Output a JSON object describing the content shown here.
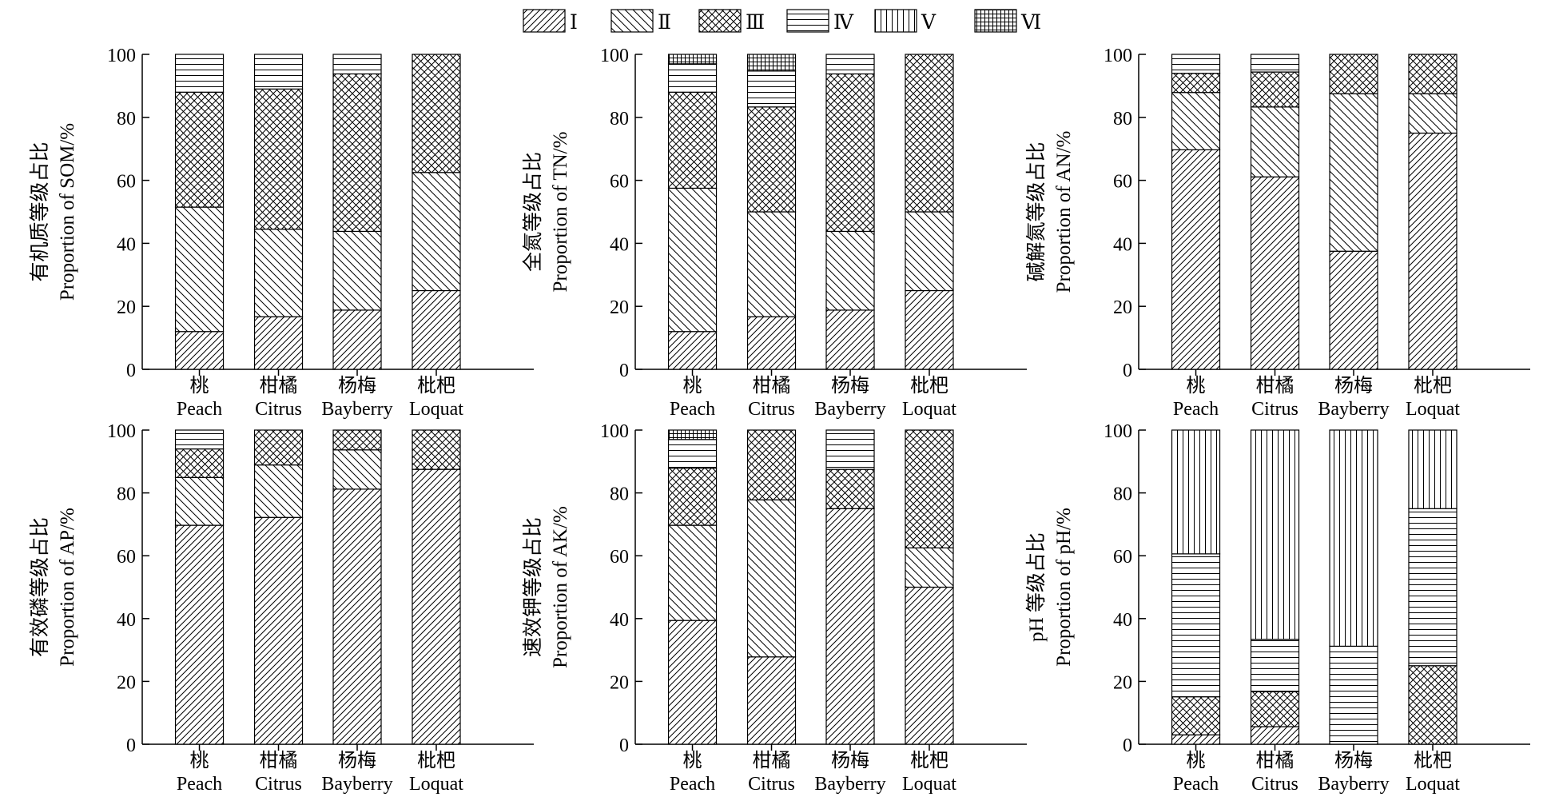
{
  "legend": {
    "items": [
      "Ⅰ",
      "Ⅱ",
      "Ⅲ",
      "Ⅳ",
      "Ⅴ",
      "Ⅵ"
    ],
    "patterns": [
      "diag-right-dense",
      "diag-left",
      "crosshatch",
      "horizontal",
      "vertical",
      "grid"
    ]
  },
  "colors": {
    "stroke": "#000000",
    "background": "#ffffff"
  },
  "chart_data": [
    {
      "type": "bar",
      "stacked": true,
      "ylabel_cn": "有机质等级占比",
      "ylabel_en": "Proportion of SOM/%",
      "ylim": [
        0,
        100
      ],
      "yticks": [
        0,
        20,
        40,
        60,
        80,
        100
      ],
      "categories": [
        {
          "cn": "桃",
          "en": "Peach"
        },
        {
          "cn": "柑橘",
          "en": "Citrus"
        },
        {
          "cn": "杨梅",
          "en": "Bayberry"
        },
        {
          "cn": "枇杷",
          "en": "Loquat"
        }
      ],
      "series": [
        {
          "name": "Ⅰ",
          "values": [
            12,
            16.7,
            18.8,
            25
          ]
        },
        {
          "name": "Ⅱ",
          "values": [
            39.5,
            27.8,
            25,
            37.5
          ]
        },
        {
          "name": "Ⅲ",
          "values": [
            36.5,
            44.5,
            50,
            37.5
          ]
        },
        {
          "name": "Ⅳ",
          "values": [
            12,
            11,
            6.2,
            0
          ]
        },
        {
          "name": "Ⅴ",
          "values": [
            0,
            0,
            0,
            0
          ]
        },
        {
          "name": "Ⅵ",
          "values": [
            0,
            0,
            0,
            0
          ]
        }
      ]
    },
    {
      "type": "bar",
      "stacked": true,
      "ylabel_cn": "全氮等级占比",
      "ylabel_en": "Proportion of TN/%",
      "ylim": [
        0,
        100
      ],
      "yticks": [
        0,
        20,
        40,
        60,
        80,
        100
      ],
      "categories": [
        {
          "cn": "桃",
          "en": "Peach"
        },
        {
          "cn": "柑橘",
          "en": "Citrus"
        },
        {
          "cn": "杨梅",
          "en": "Bayberry"
        },
        {
          "cn": "枇杷",
          "en": "Loquat"
        }
      ],
      "series": [
        {
          "name": "Ⅰ",
          "values": [
            12,
            16.7,
            18.8,
            25
          ]
        },
        {
          "name": "Ⅱ",
          "values": [
            45.5,
            33.3,
            25,
            25
          ]
        },
        {
          "name": "Ⅲ",
          "values": [
            30.5,
            33.3,
            50,
            50
          ]
        },
        {
          "name": "Ⅳ",
          "values": [
            9,
            11.4,
            6.2,
            0
          ]
        },
        {
          "name": "Ⅴ",
          "values": [
            0,
            0,
            0,
            0
          ]
        },
        {
          "name": "Ⅵ",
          "values": [
            3,
            5.3,
            0,
            0
          ]
        }
      ]
    },
    {
      "type": "bar",
      "stacked": true,
      "ylabel_cn": "碱解氮等级占比",
      "ylabel_en": "Proportion of AN/%",
      "ylim": [
        0,
        100
      ],
      "yticks": [
        0,
        20,
        40,
        60,
        80,
        100
      ],
      "categories": [
        {
          "cn": "桃",
          "en": "Peach"
        },
        {
          "cn": "柑橘",
          "en": "Citrus"
        },
        {
          "cn": "杨梅",
          "en": "Bayberry"
        },
        {
          "cn": "枇杷",
          "en": "Loquat"
        }
      ],
      "series": [
        {
          "name": "Ⅰ",
          "values": [
            69.7,
            61.1,
            37.5,
            75
          ]
        },
        {
          "name": "Ⅱ",
          "values": [
            18.2,
            22.2,
            50,
            12.5
          ]
        },
        {
          "name": "Ⅲ",
          "values": [
            6.1,
            11.1,
            12.5,
            12.5
          ]
        },
        {
          "name": "Ⅳ",
          "values": [
            6,
            5.6,
            0,
            0
          ]
        },
        {
          "name": "Ⅴ",
          "values": [
            0,
            0,
            0,
            0
          ]
        },
        {
          "name": "Ⅵ",
          "values": [
            0,
            0,
            0,
            0
          ]
        }
      ]
    },
    {
      "type": "bar",
      "stacked": true,
      "ylabel_cn": "有效磷等级占比",
      "ylabel_en": "Proportion of AP/%",
      "ylim": [
        0,
        100
      ],
      "yticks": [
        0,
        20,
        40,
        60,
        80,
        100
      ],
      "categories": [
        {
          "cn": "桃",
          "en": "Peach"
        },
        {
          "cn": "柑橘",
          "en": "Citrus"
        },
        {
          "cn": "杨梅",
          "en": "Bayberry"
        },
        {
          "cn": "枇杷",
          "en": "Loquat"
        }
      ],
      "series": [
        {
          "name": "Ⅰ",
          "values": [
            69.7,
            72.2,
            81.2,
            87.5
          ]
        },
        {
          "name": "Ⅱ",
          "values": [
            15.2,
            16.7,
            12.5,
            0
          ]
        },
        {
          "name": "Ⅲ",
          "values": [
            9.1,
            11.1,
            6.3,
            12.5
          ]
        },
        {
          "name": "Ⅳ",
          "values": [
            6,
            0,
            0,
            0
          ]
        },
        {
          "name": "Ⅴ",
          "values": [
            0,
            0,
            0,
            0
          ]
        },
        {
          "name": "Ⅵ",
          "values": [
            0,
            0,
            0,
            0
          ]
        }
      ]
    },
    {
      "type": "bar",
      "stacked": true,
      "ylabel_cn": "速效钾等级占比",
      "ylabel_en": "Proportion of AK/%",
      "ylim": [
        0,
        100
      ],
      "yticks": [
        0,
        20,
        40,
        60,
        80,
        100
      ],
      "categories": [
        {
          "cn": "桃",
          "en": "Peach"
        },
        {
          "cn": "柑橘",
          "en": "Citrus"
        },
        {
          "cn": "杨梅",
          "en": "Bayberry"
        },
        {
          "cn": "枇杷",
          "en": "Loquat"
        }
      ],
      "series": [
        {
          "name": "Ⅰ",
          "values": [
            39.4,
            27.8,
            75,
            50
          ]
        },
        {
          "name": "Ⅱ",
          "values": [
            30.3,
            50,
            0,
            12.5
          ]
        },
        {
          "name": "Ⅲ",
          "values": [
            18.2,
            22.2,
            12.5,
            37.5
          ]
        },
        {
          "name": "Ⅳ",
          "values": [
            9.1,
            0,
            12.5,
            0
          ]
        },
        {
          "name": "Ⅴ",
          "values": [
            0,
            0,
            0,
            0
          ]
        },
        {
          "name": "Ⅵ",
          "values": [
            3,
            0,
            0,
            0
          ]
        }
      ]
    },
    {
      "type": "bar",
      "stacked": true,
      "ylabel_cn": "pH 等级占比",
      "ylabel_en": "Proportion of pH/%",
      "ylim": [
        0,
        100
      ],
      "yticks": [
        0,
        20,
        40,
        60,
        80,
        100
      ],
      "categories": [
        {
          "cn": "桃",
          "en": "Peach"
        },
        {
          "cn": "柑橘",
          "en": "Citrus"
        },
        {
          "cn": "杨梅",
          "en": "Bayberry"
        },
        {
          "cn": "枇杷",
          "en": "Loquat"
        }
      ],
      "series": [
        {
          "name": "Ⅰ",
          "values": [
            3,
            5.6,
            0,
            0
          ]
        },
        {
          "name": "Ⅱ",
          "values": [
            0,
            0,
            0,
            0
          ]
        },
        {
          "name": "Ⅲ",
          "values": [
            12.1,
            11.1,
            0,
            25
          ]
        },
        {
          "name": "Ⅳ",
          "values": [
            45.5,
            16.7,
            31.2,
            50
          ]
        },
        {
          "name": "Ⅴ",
          "values": [
            39.4,
            66.6,
            68.8,
            25
          ]
        },
        {
          "name": "Ⅵ",
          "values": [
            0,
            0,
            0,
            0
          ]
        }
      ]
    }
  ]
}
